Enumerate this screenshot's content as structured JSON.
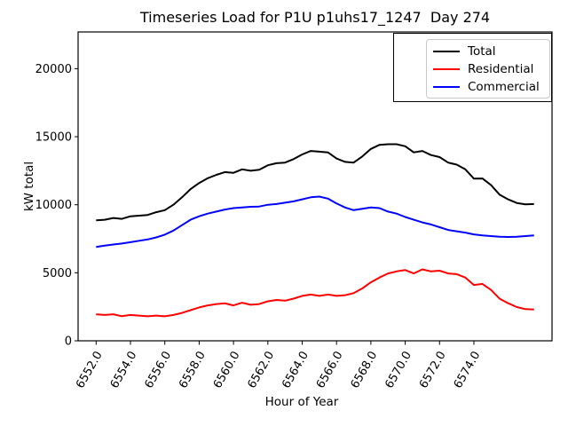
{
  "figure": {
    "title": "Timeseries Load for P1U p1uhs17_1247  Day 274"
  },
  "chart_data": {
    "type": "line",
    "title": "Timeseries Load for P1U p1uhs17_1247  Day 274",
    "xlabel": "Hour of Year",
    "ylabel": "kW total",
    "xlim": [
      6550.95,
      6578.55
    ],
    "ylim": [
      0,
      22700
    ],
    "grid": false,
    "legend_position": "upper right",
    "x_tick_values": [
      6552,
      6554,
      6556,
      6558,
      6560,
      6562,
      6564,
      6566,
      6568,
      6570,
      6572,
      6574
    ],
    "x_tick_labels": [
      "6552.0",
      "6554.0",
      "6556.0",
      "6558.0",
      "6560.0",
      "6562.0",
      "6564.0",
      "6566.0",
      "6568.0",
      "6570.0",
      "6572.0",
      "6574.0"
    ],
    "x_tick_rotation_deg": 60,
    "y_tick_values": [
      0,
      5000,
      10000,
      15000,
      20000
    ],
    "y_tick_labels": [
      "0",
      "5000",
      "10000",
      "15000",
      "20000"
    ],
    "x": [
      6552.0,
      6552.5,
      6553.0,
      6553.5,
      6554.0,
      6554.5,
      6555.0,
      6555.5,
      6556.0,
      6556.5,
      6557.0,
      6557.5,
      6558.0,
      6558.5,
      6559.0,
      6559.5,
      6560.0,
      6560.5,
      6561.0,
      6561.5,
      6562.0,
      6562.5,
      6563.0,
      6563.5,
      6564.0,
      6564.5,
      6565.0,
      6565.5,
      6566.0,
      6566.5,
      6567.0,
      6567.5,
      6568.0,
      6568.5,
      6569.0,
      6569.5,
      6570.0,
      6570.5,
      6571.0,
      6571.5,
      6572.0,
      6572.5,
      6573.0,
      6573.5,
      6574.0,
      6574.5,
      6575.0,
      6575.5,
      6576.0,
      6576.5,
      6577.0,
      6577.5
    ],
    "series": [
      {
        "name": "Total",
        "color": "#000000",
        "values": [
          8850,
          8900,
          9030,
          8960,
          9150,
          9200,
          9250,
          9450,
          9600,
          10000,
          10550,
          11150,
          11600,
          11950,
          12200,
          12400,
          12350,
          12600,
          12500,
          12570,
          12900,
          13050,
          13100,
          13350,
          13700,
          13950,
          13900,
          13850,
          13400,
          13150,
          13100,
          13550,
          14100,
          14400,
          14450,
          14450,
          14300,
          13850,
          13950,
          13650,
          13500,
          13100,
          12950,
          12600,
          11920,
          11930,
          11440,
          10740,
          10390,
          10130,
          10030,
          10050
        ]
      },
      {
        "name": "Residential",
        "color": "#ff0000",
        "values": [
          1950,
          1900,
          1950,
          1810,
          1900,
          1850,
          1800,
          1850,
          1800,
          1900,
          2050,
          2250,
          2450,
          2600,
          2700,
          2750,
          2600,
          2800,
          2650,
          2700,
          2900,
          3000,
          2950,
          3100,
          3300,
          3400,
          3300,
          3400,
          3300,
          3350,
          3500,
          3850,
          4300,
          4650,
          4950,
          5100,
          5200,
          4950,
          5250,
          5100,
          5150,
          4950,
          4900,
          4650,
          4100,
          4180,
          3740,
          3090,
          2760,
          2480,
          2330,
          2300
        ]
      },
      {
        "name": "Commercial",
        "color": "#0000ff",
        "values": [
          6900,
          7000,
          7080,
          7150,
          7250,
          7350,
          7450,
          7600,
          7800,
          8100,
          8500,
          8900,
          9150,
          9350,
          9500,
          9650,
          9750,
          9800,
          9850,
          9870,
          10000,
          10050,
          10150,
          10250,
          10400,
          10550,
          10600,
          10450,
          10100,
          9800,
          9600,
          9700,
          9800,
          9750,
          9500,
          9350,
          9100,
          8900,
          8700,
          8550,
          8350,
          8150,
          8050,
          7950,
          7820,
          7750,
          7700,
          7650,
          7630,
          7650,
          7700,
          7750
        ]
      }
    ]
  }
}
